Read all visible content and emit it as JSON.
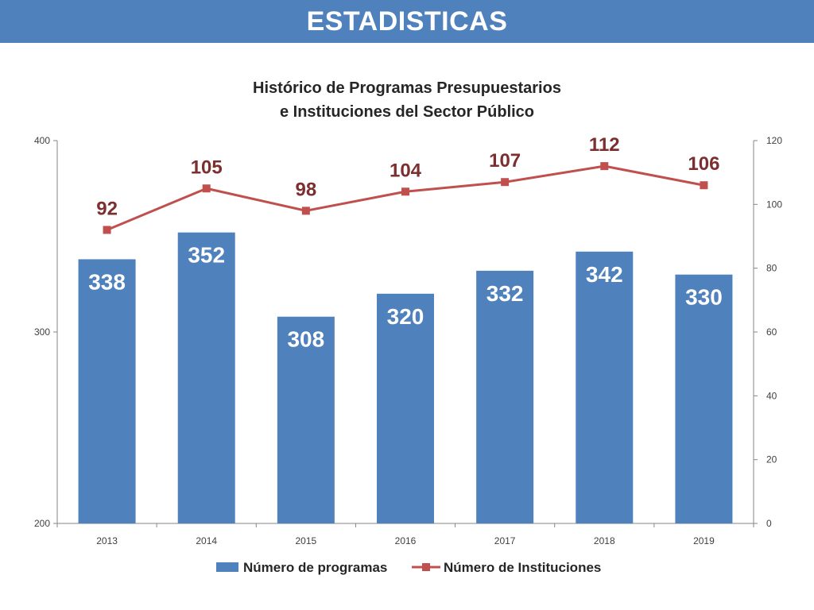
{
  "header": {
    "title": "ESTADISTICAS"
  },
  "chart_data": {
    "type": "bar+line",
    "title_line1": "Histórico de Programas Presupuestarios",
    "title_line2": "e Instituciones del Sector Público",
    "categories": [
      "2013",
      "2014",
      "2015",
      "2016",
      "2017",
      "2018",
      "2019"
    ],
    "series": [
      {
        "name": "Número de programas",
        "type": "bar",
        "axis": "left",
        "values": [
          338,
          352,
          308,
          320,
          332,
          342,
          330
        ],
        "color": "#4f81bd"
      },
      {
        "name": "Número de Instituciones",
        "type": "line",
        "axis": "right",
        "values": [
          92,
          105,
          98,
          104,
          107,
          112,
          106
        ],
        "color": "#c0504d"
      }
    ],
    "y_left": {
      "min": 200,
      "max": 400,
      "ticks": [
        "200",
        "300",
        "400"
      ]
    },
    "y_right": {
      "min": 0,
      "max": 120,
      "ticks": [
        "0",
        "20",
        "40",
        "60",
        "80",
        "100",
        "120"
      ]
    },
    "legend_position": "bottom",
    "grid": false
  }
}
